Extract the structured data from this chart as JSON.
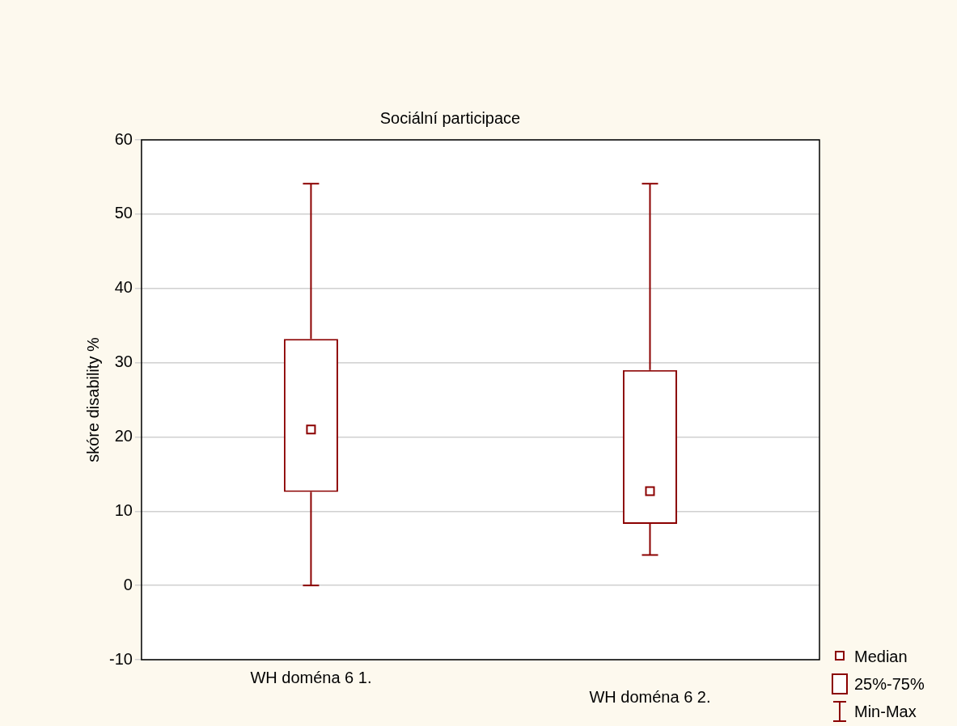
{
  "chart_data": {
    "type": "box",
    "title": "Sociální participace",
    "ylabel": "skóre disability %",
    "categories": [
      "WH doména 6 1.",
      "WH doména 6 2."
    ],
    "series": [
      {
        "color": "#8b0000",
        "boxes": [
          {
            "low": 0,
            "q1": 12.6,
            "median": 21.0,
            "q3": 33.2,
            "high": 54.1
          },
          {
            "low": 4.1,
            "q1": 8.3,
            "median": 12.7,
            "q3": 29.0,
            "high": 54.1
          }
        ]
      }
    ],
    "ylim": [
      -10,
      60
    ],
    "yticks": [
      -10,
      0,
      10,
      20,
      30,
      40,
      50,
      60
    ],
    "grid": "y",
    "marker": "square",
    "annotations": [
      "Median",
      "25%-75%",
      "Min-Max"
    ]
  }
}
